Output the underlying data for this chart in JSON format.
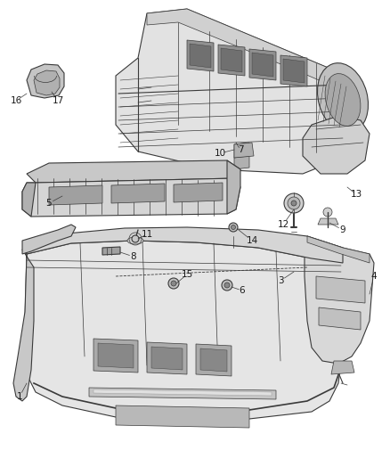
{
  "bg_color": "#ffffff",
  "line_color": "#3a3a3a",
  "label_color": "#1a1a1a",
  "fig_width": 4.38,
  "fig_height": 5.33,
  "dpi": 100,
  "label_fontsize": 7.5,
  "lw_thin": 0.5,
  "lw_med": 0.8,
  "lw_thick": 1.2,
  "parts_gray": "#c8c8c8",
  "dark_gray": "#888888",
  "mid_gray": "#b0b0b0",
  "light_gray": "#e2e2e2"
}
